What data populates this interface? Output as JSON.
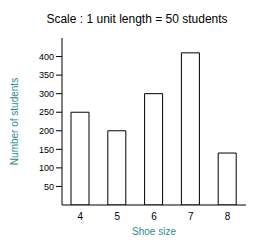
{
  "chart_data": {
    "type": "bar",
    "title": "Scale : 1 unit length = 50 students",
    "x_label": "Shoe size",
    "y_label": "Number of students",
    "categories": [
      "4",
      "5",
      "6",
      "7",
      "8"
    ],
    "values": [
      250,
      200,
      300,
      410,
      140
    ],
    "color": "#ffffff",
    "ylim": [
      0,
      450
    ],
    "yticks": [
      50,
      100,
      150,
      200,
      250,
      300,
      350,
      400
    ],
    "grid": false
  }
}
